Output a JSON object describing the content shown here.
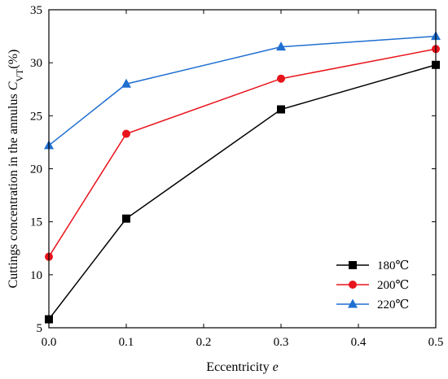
{
  "chart_data": {
    "type": "line",
    "title": "",
    "xlabel": "Eccentricity",
    "xlabel_var": "e",
    "ylabel": "Cuttings concentration in the annulus ",
    "ylabel_var": "C",
    "ylabel_sub": "VT",
    "ylabel_unit": "(%)",
    "xlim": [
      0.0,
      0.5
    ],
    "ylim": [
      5,
      35
    ],
    "xticks": [
      "0.0",
      "0.1",
      "0.2",
      "0.3",
      "0.4",
      "0.5"
    ],
    "yticks": [
      "5",
      "10",
      "15",
      "20",
      "25",
      "30",
      "35"
    ],
    "grid": false,
    "legend_position": "bottom-right",
    "x": [
      0.0,
      0.1,
      0.3,
      0.5
    ],
    "series": [
      {
        "name": "180℃",
        "values": [
          5.8,
          15.3,
          25.6,
          29.8
        ],
        "color": "#000000",
        "marker": "square"
      },
      {
        "name": "200℃",
        "values": [
          11.7,
          23.3,
          28.5,
          31.3
        ],
        "color": "#e8141c",
        "marker": "circle"
      },
      {
        "name": "220℃",
        "values": [
          22.2,
          28.0,
          31.5,
          32.5
        ],
        "color": "#1f6fd1",
        "marker": "triangle"
      }
    ]
  }
}
